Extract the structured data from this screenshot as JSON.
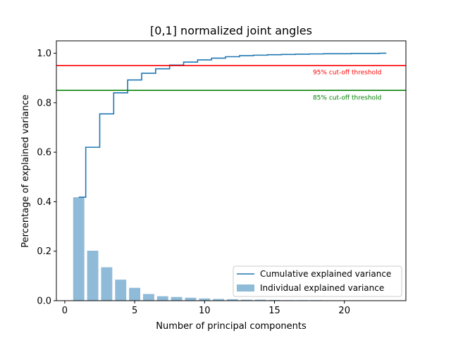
{
  "chart_data": {
    "type": "bar",
    "title": "[0,1] normalized joint angles",
    "xlabel": "Number of principal components",
    "ylabel": "Percentage of explained variance",
    "xlim": [
      -0.6,
      24.4
    ],
    "ylim": [
      0,
      1.05
    ],
    "xticks": [
      0,
      5,
      10,
      15,
      20
    ],
    "yticks": [
      0.0,
      0.2,
      0.4,
      0.6,
      0.8,
      1.0
    ],
    "x": [
      1,
      2,
      3,
      4,
      5,
      6,
      7,
      8,
      9,
      10,
      11,
      12,
      13,
      14,
      15,
      16,
      17,
      18,
      19,
      20,
      21,
      22,
      23
    ],
    "series": [
      {
        "name": "Individual explained variance",
        "kind": "bar",
        "color": "#1f77b4",
        "alpha": 0.5,
        "values": [
          0.418,
          0.202,
          0.135,
          0.085,
          0.052,
          0.027,
          0.018,
          0.015,
          0.012,
          0.009,
          0.007,
          0.006,
          0.004,
          0.004,
          0.003,
          0.002,
          0.002,
          0.002,
          0.001,
          0.001,
          0.001,
          0.001,
          0.001
        ]
      },
      {
        "name": "Cumulative explained variance",
        "kind": "step",
        "color": "#1f77b4",
        "values": [
          0.418,
          0.62,
          0.755,
          0.84,
          0.892,
          0.919,
          0.937,
          0.952,
          0.964,
          0.973,
          0.98,
          0.986,
          0.99,
          0.992,
          0.994,
          0.995,
          0.996,
          0.997,
          0.998,
          0.998,
          0.999,
          0.999,
          1.0
        ]
      }
    ],
    "thresholds": [
      {
        "y": 0.95,
        "color": "#ff0000",
        "label": "95% cut-off threshold",
        "label_x": 20.2,
        "label_y": 0.915
      },
      {
        "y": 0.85,
        "color": "#008000",
        "label": "85% cut-off threshold",
        "label_x": 20.2,
        "label_y": 0.813
      }
    ],
    "legend": {
      "placement": "lower-right",
      "entries": [
        "Cumulative explained variance",
        "Individual explained variance"
      ]
    }
  }
}
